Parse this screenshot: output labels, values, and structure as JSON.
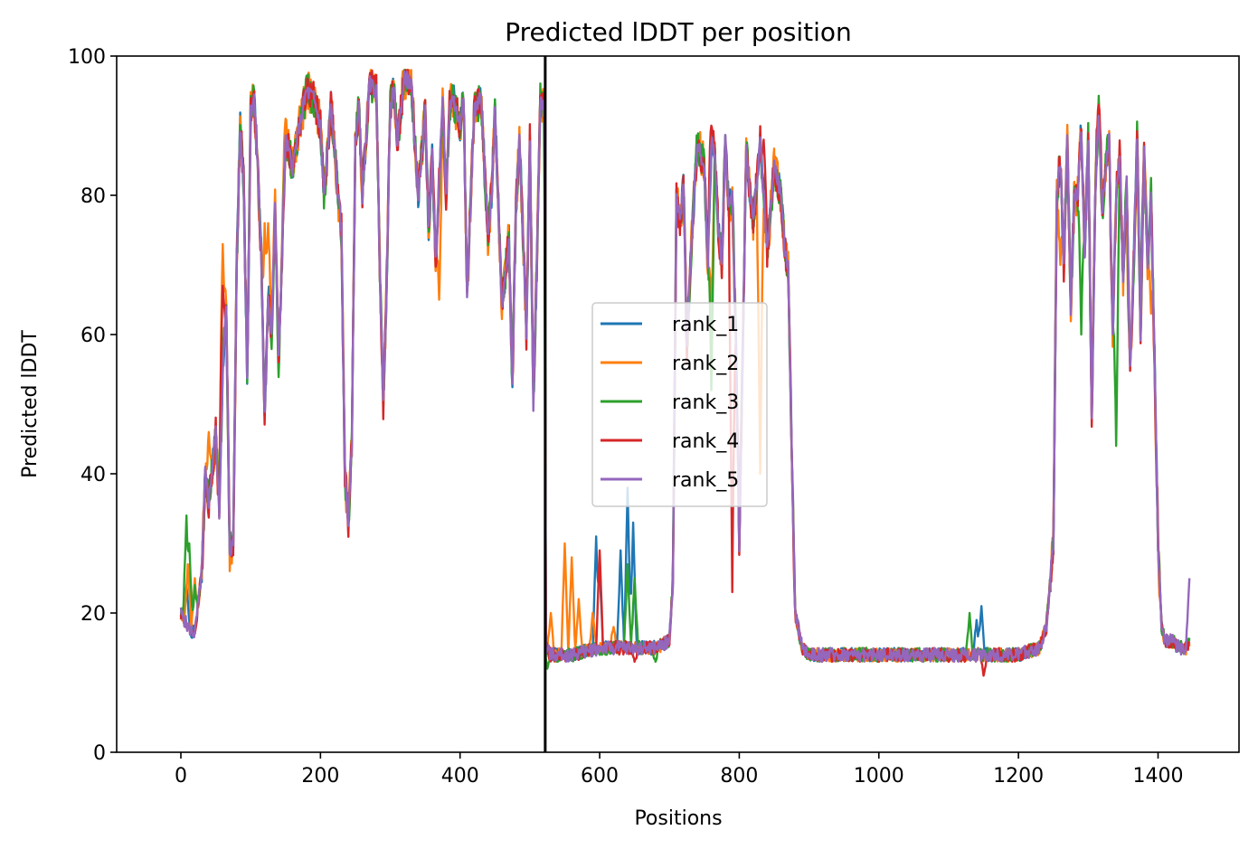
{
  "chart_data": {
    "type": "line",
    "title": "Predicted lDDT per position",
    "xlabel": "Positions",
    "ylabel": "Predicted lDDT",
    "xlim": [
      -92,
      1516
    ],
    "ylim": [
      0,
      100
    ],
    "x_ticks": [
      0,
      200,
      400,
      600,
      800,
      1000,
      1200,
      1400
    ],
    "y_ticks": [
      0,
      20,
      40,
      60,
      80,
      100
    ],
    "grid": false,
    "legend_position": "center",
    "chain_break": 522,
    "line_width": 2.4,
    "series": [
      {
        "name": "rank_1",
        "color": "#1f77b4",
        "vary_amp": 2.2,
        "ovr": [
          [
            8,
            24
          ],
          [
            595,
            31
          ],
          [
            600,
            26
          ],
          [
            630,
            29
          ],
          [
            640,
            38
          ],
          [
            648,
            33
          ],
          [
            1140,
            19
          ],
          [
            1147,
            21
          ],
          [
            1380,
            83
          ]
        ]
      },
      {
        "name": "rank_2",
        "color": "#ff7f0e",
        "vary_amp": 3.0,
        "ovr": [
          [
            10,
            27
          ],
          [
            20,
            25
          ],
          [
            40,
            46
          ],
          [
            60,
            73
          ],
          [
            120,
            76
          ],
          [
            125,
            76
          ],
          [
            150,
            91
          ],
          [
            370,
            65
          ],
          [
            530,
            20
          ],
          [
            550,
            30
          ],
          [
            560,
            28
          ],
          [
            570,
            22
          ],
          [
            590,
            20
          ],
          [
            620,
            18
          ],
          [
            760,
            62
          ],
          [
            830,
            40
          ],
          [
            1260,
            70
          ],
          [
            1360,
            58
          ],
          [
            1390,
            63
          ]
        ]
      },
      {
        "name": "rank_3",
        "color": "#2ca02c",
        "vary_amp": 2.6,
        "ovr": [
          [
            8,
            34
          ],
          [
            12,
            30
          ],
          [
            20,
            24
          ],
          [
            525,
            12
          ],
          [
            540,
            13
          ],
          [
            600,
            14
          ],
          [
            610,
            14
          ],
          [
            640,
            27
          ],
          [
            650,
            25
          ],
          [
            680,
            13
          ],
          [
            760,
            52
          ],
          [
            1000,
            13
          ],
          [
            1100,
            13
          ],
          [
            1130,
            20
          ],
          [
            1290,
            60
          ],
          [
            1340,
            44
          ],
          [
            1360,
            60
          ]
        ]
      },
      {
        "name": "rank_4",
        "color": "#d62728",
        "vary_amp": 2.4,
        "ovr": [
          [
            15,
            17
          ],
          [
            60,
            67
          ],
          [
            600,
            29
          ],
          [
            650,
            13
          ],
          [
            760,
            90
          ],
          [
            790,
            23
          ],
          [
            835,
            88
          ],
          [
            1000,
            13
          ],
          [
            1100,
            13
          ],
          [
            1150,
            11
          ],
          [
            1315,
            93
          ]
        ]
      },
      {
        "name": "rank_5",
        "color": "#9467bd",
        "vary_amp": 1.2,
        "ovr": [
          [
            1445,
            25
          ]
        ]
      }
    ],
    "base_profile_x": [
      0,
      10,
      20,
      30,
      35,
      40,
      50,
      55,
      60,
      65,
      70,
      75,
      80,
      85,
      90,
      95,
      100,
      105,
      110,
      115,
      120,
      125,
      130,
      135,
      140,
      150,
      160,
      170,
      180,
      190,
      200,
      205,
      210,
      215,
      220,
      225,
      230,
      235,
      240,
      245,
      250,
      255,
      260,
      270,
      280,
      285,
      290,
      295,
      300,
      305,
      310,
      315,
      320,
      330,
      340,
      350,
      355,
      360,
      365,
      370,
      375,
      380,
      385,
      390,
      400,
      405,
      410,
      420,
      430,
      440,
      445,
      450,
      460,
      470,
      475,
      480,
      485,
      490,
      495,
      500,
      505,
      510,
      515,
      521,
      523,
      530,
      560,
      600,
      630,
      650,
      680,
      700,
      705,
      710,
      715,
      720,
      725,
      730,
      740,
      750,
      755,
      760,
      765,
      770,
      775,
      780,
      785,
      790,
      795,
      800,
      810,
      820,
      830,
      840,
      850,
      860,
      865,
      870,
      875,
      880,
      890,
      900,
      1000,
      1100,
      1200,
      1230,
      1240,
      1250,
      1255,
      1260,
      1265,
      1270,
      1275,
      1280,
      1285,
      1290,
      1295,
      1300,
      1305,
      1310,
      1315,
      1320,
      1325,
      1330,
      1335,
      1340,
      1345,
      1350,
      1355,
      1360,
      1365,
      1370,
      1375,
      1380,
      1385,
      1390,
      1395,
      1400,
      1405,
      1410,
      1420,
      1430,
      1440,
      1445
    ],
    "base_profile_y": [
      20,
      18,
      17,
      26,
      40,
      36,
      46,
      34,
      55,
      64,
      29,
      30,
      70,
      90,
      82,
      54,
      92,
      94,
      84,
      72,
      48,
      66,
      60,
      78,
      56,
      88,
      84,
      90,
      95,
      94,
      90,
      80,
      86,
      93,
      87,
      80,
      75,
      40,
      33,
      45,
      88,
      93,
      80,
      96,
      95,
      70,
      50,
      68,
      93,
      95,
      88,
      92,
      97,
      96,
      80,
      92,
      75,
      86,
      70,
      82,
      93,
      80,
      93,
      94,
      90,
      95,
      65,
      92,
      94,
      74,
      80,
      92,
      64,
      74,
      52,
      78,
      88,
      75,
      60,
      88,
      50,
      70,
      94,
      92,
      15,
      14,
      14,
      15,
      15,
      15,
      15,
      16,
      25,
      80,
      76,
      82,
      58,
      70,
      88,
      84,
      70,
      88,
      86,
      75,
      70,
      88,
      78,
      80,
      60,
      30,
      86,
      76,
      88,
      72,
      84,
      80,
      72,
      70,
      45,
      20,
      15,
      14,
      14,
      14,
      14,
      15,
      18,
      30,
      80,
      85,
      70,
      88,
      64,
      80,
      80,
      90,
      72,
      88,
      48,
      80,
      92,
      78,
      84,
      88,
      60,
      80,
      86,
      68,
      82,
      55,
      70,
      88,
      60,
      86,
      70,
      80,
      56,
      30,
      18,
      16,
      16,
      15,
      15,
      16
    ]
  }
}
